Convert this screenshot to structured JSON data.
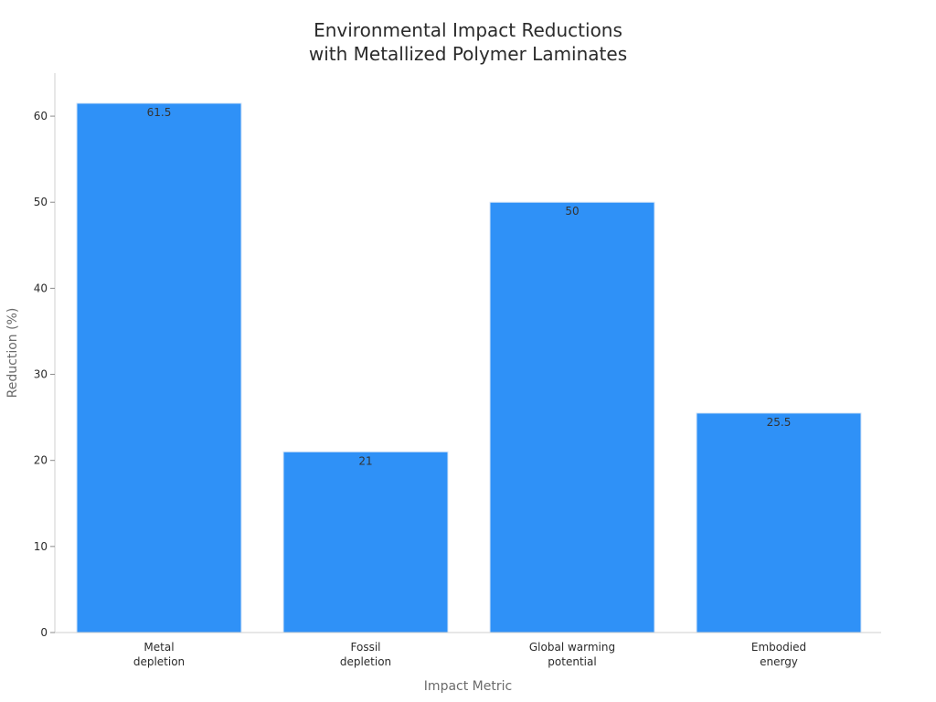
{
  "chart_data": {
    "type": "bar",
    "title_lines": [
      "Environmental Impact Reductions",
      "with Metallized Polymer Laminates"
    ],
    "xlabel": "Impact Metric",
    "ylabel": "Reduction (%)",
    "categories": [
      [
        "Metal",
        "depletion"
      ],
      [
        "Fossil",
        "depletion"
      ],
      [
        "Global warming",
        "potential"
      ],
      [
        "Embodied",
        "energy"
      ]
    ],
    "values": [
      61.5,
      21,
      50,
      25.5
    ],
    "data_labels": [
      "61.5",
      "21",
      "50",
      "25.5"
    ],
    "ylim": [
      0,
      65
    ],
    "yticks": [
      0,
      10,
      20,
      30,
      40,
      50,
      60
    ],
    "bar_color": "#2f91f7",
    "grid": false,
    "legend": "none"
  }
}
